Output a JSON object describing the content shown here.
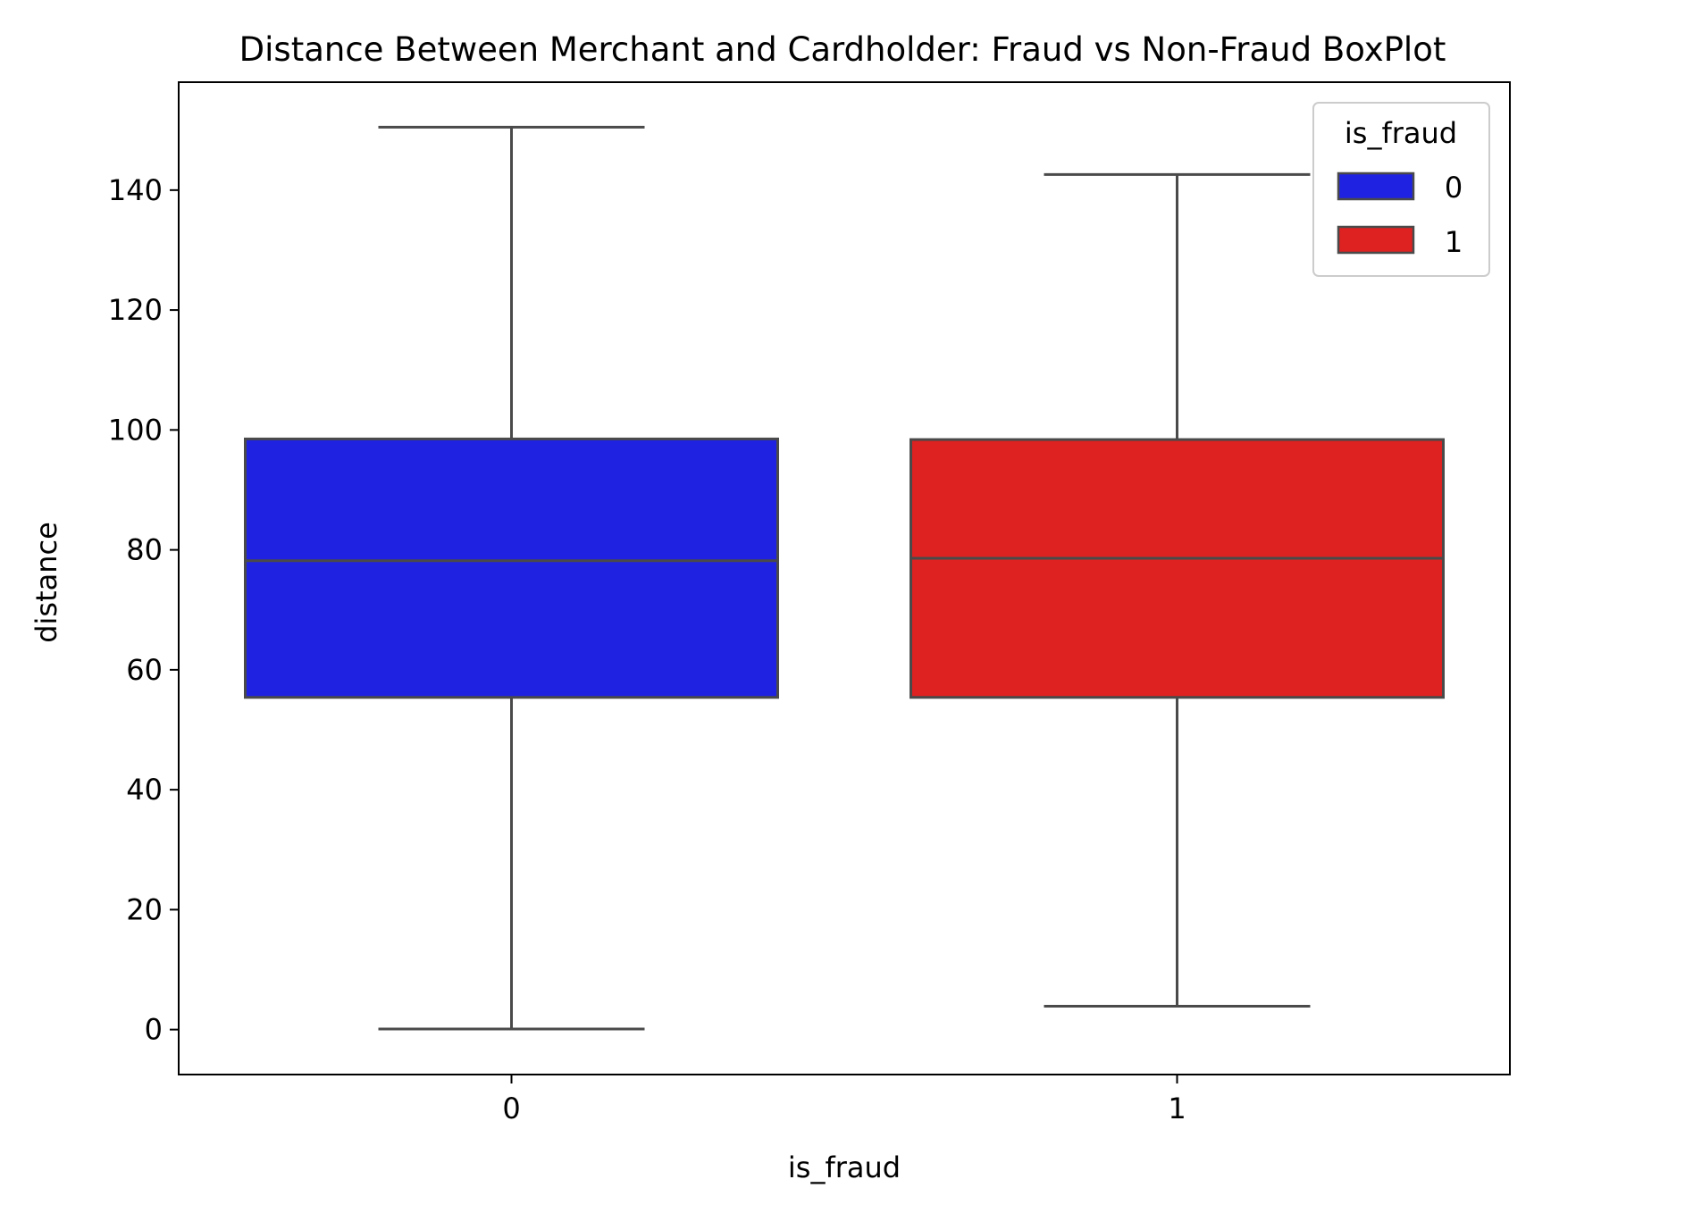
{
  "chart_data": {
    "type": "boxplot",
    "title": "Distance Between Merchant and Cardholder: Fraud vs Non-Fraud BoxPlot",
    "xlabel": "is_fraud",
    "ylabel": "distance",
    "categories": [
      "0",
      "1"
    ],
    "ylim": [
      -7.5,
      158
    ],
    "yticks": [
      0,
      20,
      40,
      60,
      80,
      100,
      120,
      140
    ],
    "grid": false,
    "legend": {
      "title": "is_fraud",
      "placement": "top-right",
      "entries": [
        {
          "label": "0",
          "color": "#1f22e1"
        },
        {
          "label": "1",
          "color": "#de2121"
        }
      ]
    },
    "series": [
      {
        "category": "0",
        "min": 0.1,
        "q1": 55.4,
        "median": 78.2,
        "q3": 98.5,
        "max": 150.5,
        "color": "#1f22e1"
      },
      {
        "category": "1",
        "min": 3.9,
        "q1": 55.4,
        "median": 78.6,
        "q3": 98.4,
        "max": 142.6,
        "color": "#de2121"
      }
    ],
    "line_color": "#4a4a4a"
  }
}
